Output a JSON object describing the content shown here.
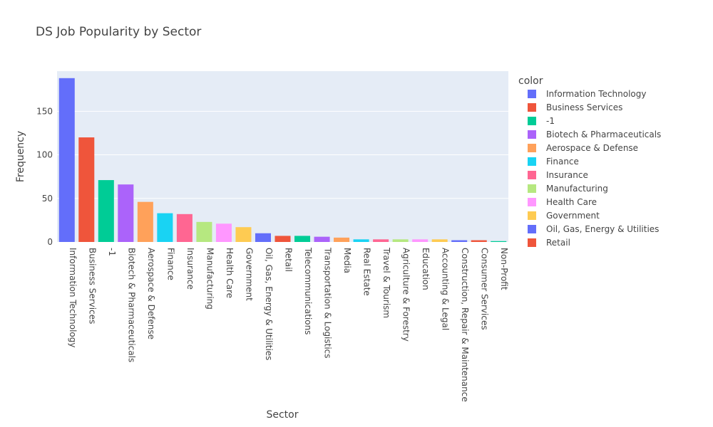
{
  "chart_data": {
    "type": "bar",
    "title": "DS Job Popularity by Sector",
    "xlabel": "Sector",
    "ylabel": "Frequency",
    "ylim": [
      0,
      196
    ],
    "yticks": [
      "0",
      "50",
      "100",
      "150"
    ],
    "grid": true,
    "legend_title": "color",
    "legend_position": "right",
    "categories": [
      "Information Technology",
      "Business Services",
      "-1",
      "Biotech & Pharmaceuticals",
      "Aerospace & Defense",
      "Finance",
      "Insurance",
      "Manufacturing",
      "Health Care",
      "Government",
      "Oil, Gas, Energy & Utilities",
      "Retail",
      "Telecommunications",
      "Transportation & Logistics",
      "Media",
      "Real Estate",
      "Travel & Tourism",
      "Agriculture & Forestry",
      "Education",
      "Accounting & Legal",
      "Construction, Repair & Maintenance",
      "Consumer Services",
      "Non-Profit"
    ],
    "values": [
      188,
      120,
      71,
      66,
      46,
      33,
      32,
      23,
      21,
      17,
      10,
      7,
      7,
      6,
      5,
      3,
      3,
      3,
      3,
      3,
      2,
      2,
      1
    ],
    "colors": [
      "#636efa",
      "#EF553B",
      "#00cc96",
      "#ab63fa",
      "#FFA15A",
      "#19d3f3",
      "#FF6692",
      "#B6E880",
      "#FF97FF",
      "#FECB52",
      "#636efa",
      "#EF553B",
      "#00cc96",
      "#ab63fa",
      "#FFA15A",
      "#19d3f3",
      "#FF6692",
      "#B6E880",
      "#FF97FF",
      "#FECB52",
      "#636efa",
      "#EF553B",
      "#00cc96"
    ],
    "legend_visible": [
      "Information Technology",
      "Business Services",
      "-1",
      "Biotech & Pharmaceuticals",
      "Aerospace & Defense",
      "Finance",
      "Insurance",
      "Manufacturing",
      "Health Care",
      "Government",
      "Oil, Gas, Energy & Utilities",
      "Retail"
    ]
  }
}
